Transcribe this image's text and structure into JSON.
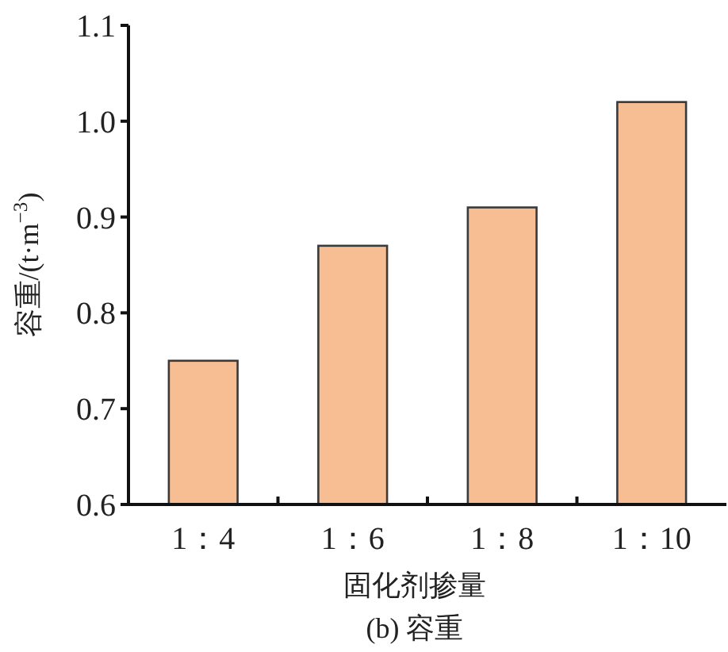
{
  "chart_data": {
    "type": "bar",
    "categories": [
      "1：4",
      "1：6",
      "1：8",
      "1：10"
    ],
    "values": [
      0.75,
      0.87,
      0.91,
      1.02
    ],
    "color": "#f7bd93",
    "xlabel": "固化剂掺量",
    "ylabel": "容重/(t·m$^{−3}$)",
    "annotations": [
      "(b) 容重"
    ],
    "ylim": [
      0.6,
      1.1
    ],
    "yticks": [
      0.6,
      0.7,
      0.8,
      0.9,
      {
        "value": 1.0,
        "label": "1.0"
      },
      1.1
    ]
  }
}
